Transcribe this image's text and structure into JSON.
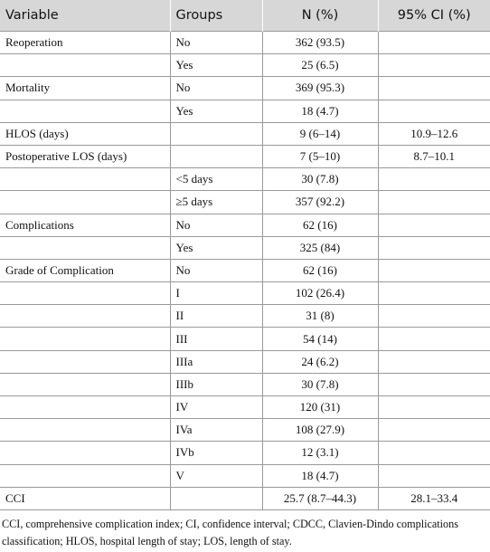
{
  "table": {
    "header": [
      "Variable",
      "Groups",
      "N (%)",
      "95% CI (%)"
    ],
    "rows": [
      [
        "Reoperation",
        "No",
        "362 (93.5)",
        null
      ],
      [
        null,
        "Yes",
        "25 (6.5)",
        null
      ],
      [
        "Mortality",
        "No",
        "369 (95.3)",
        null
      ],
      [
        null,
        "Yes",
        "18 (4.7)",
        null
      ],
      [
        "HLOS (days)",
        null,
        "9 (6–14)",
        "10.9–12.6"
      ],
      [
        "Postoperative LOS (days)",
        null,
        "7 (5–10)",
        "8.7–10.1"
      ],
      [
        null,
        "<5 days",
        "30 (7.8)",
        null
      ],
      [
        null,
        "≥5 days",
        "357 (92.2)",
        null
      ],
      [
        "Complications",
        "No",
        "62 (16)",
        null
      ],
      [
        null,
        "Yes",
        "325 (84)",
        null
      ],
      [
        "Grade of Complication",
        "No",
        "62 (16)",
        null
      ],
      [
        null,
        "I",
        "102 (26.4)",
        null
      ],
      [
        null,
        "II",
        "31 (8)",
        null
      ],
      [
        null,
        "III",
        "54 (14)",
        null
      ],
      [
        null,
        "IIIa",
        "24 (6.2)",
        null
      ],
      [
        null,
        "IIIb",
        "30 (7.8)",
        null
      ],
      [
        null,
        "IV",
        "120 (31)",
        null
      ],
      [
        null,
        "IVa",
        "108 (27.9)",
        null
      ],
      [
        null,
        "IVb",
        "12 (3.1)",
        null
      ],
      [
        null,
        "V",
        "18 (4.7)",
        null
      ],
      [
        "CCI",
        null,
        "25.7 (8.7–44.3)",
        "28.1–33.4"
      ]
    ]
  },
  "footnote": "CCI, comprehensive complication index; CI, confidence interval; CDCC, Clavien-Dindo complications classification; HLOS, hospital length of stay; LOS, length of stay."
}
